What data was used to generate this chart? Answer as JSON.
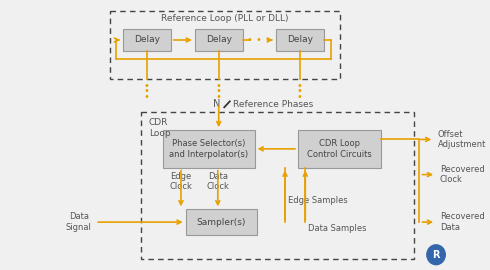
{
  "bg_color": "#f0f0f0",
  "box_fill": "#d0d0d0",
  "box_edge": "#999999",
  "arrow_color": "#e8a000",
  "dash_color": "#444444",
  "text_color": "#555555",
  "label_color": "#555555",
  "title_text": "Reference Loop (PLL or DLL)",
  "cdr_loop_label": "CDR\nLoop",
  "offset_adj_label": "Offset\nAdjustment",
  "recovered_clock_label": "Recovered\nClock",
  "recovered_data_label": "Recovered\nData",
  "data_signal_label": "Data\nSignal",
  "edge_clock_label": "Edge\nClock",
  "data_clock_label": "Data\nClock",
  "edge_samples_label": "Edge Samples",
  "data_samples_label": "Data Samples",
  "N_label": "N",
  "ref_phases_label": "Reference Phases",
  "phase_sel_label": "Phase Selector(s)\nand Interpolator(s)",
  "cdr_ctrl_label": "CDR Loop\nControl Circuits",
  "sampler_label": "Sampler(s)",
  "delay_label": "Delay"
}
